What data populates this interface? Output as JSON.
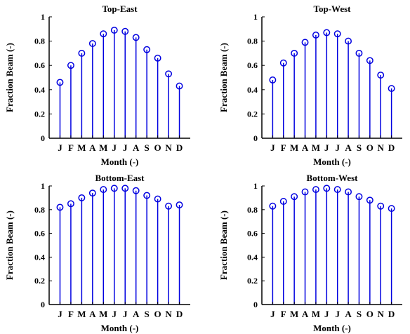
{
  "chart_data": [
    {
      "type": "stem",
      "title": "Top-East",
      "xlabel": "Month (-)",
      "ylabel": "Fraction Beam (-)",
      "categories": [
        "J",
        "F",
        "M",
        "A",
        "M",
        "J",
        "J",
        "A",
        "S",
        "O",
        "N",
        "D"
      ],
      "values": [
        0.46,
        0.6,
        0.7,
        0.78,
        0.86,
        0.89,
        0.88,
        0.83,
        0.73,
        0.66,
        0.53,
        0.43
      ],
      "ylim": [
        0,
        1
      ],
      "yticks": [
        "0",
        "0.2",
        "0.4",
        "0.6",
        "0.8",
        "1"
      ],
      "color": "#0000e0",
      "grid": false
    },
    {
      "type": "stem",
      "title": "Top-West",
      "xlabel": "Month (-)",
      "ylabel": "Fraction Beam (-)",
      "categories": [
        "J",
        "F",
        "M",
        "A",
        "M",
        "J",
        "J",
        "A",
        "S",
        "O",
        "N",
        "D"
      ],
      "values": [
        0.48,
        0.62,
        0.7,
        0.79,
        0.85,
        0.87,
        0.86,
        0.8,
        0.7,
        0.64,
        0.52,
        0.41
      ],
      "ylim": [
        0,
        1
      ],
      "yticks": [
        "0",
        "0.2",
        "0.4",
        "0.6",
        "0.8",
        "1"
      ],
      "color": "#0000e0",
      "grid": false
    },
    {
      "type": "stem",
      "title": "Bottom-East",
      "xlabel": "Month (-)",
      "ylabel": "Fraction Beam (-)",
      "categories": [
        "J",
        "F",
        "M",
        "A",
        "M",
        "J",
        "J",
        "A",
        "S",
        "O",
        "N",
        "D"
      ],
      "values": [
        0.82,
        0.85,
        0.9,
        0.94,
        0.97,
        0.98,
        0.98,
        0.96,
        0.92,
        0.89,
        0.83,
        0.84
      ],
      "ylim": [
        0,
        1
      ],
      "yticks": [
        "0",
        "0.2",
        "0.4",
        "0.6",
        "0.8",
        "1"
      ],
      "color": "#0000e0",
      "grid": false
    },
    {
      "type": "stem",
      "title": "Bottom-West",
      "xlabel": "Month (-)",
      "ylabel": "Fraction Beam (-)",
      "categories": [
        "J",
        "F",
        "M",
        "A",
        "M",
        "J",
        "J",
        "A",
        "S",
        "O",
        "N",
        "D"
      ],
      "values": [
        0.83,
        0.87,
        0.91,
        0.95,
        0.97,
        0.98,
        0.97,
        0.95,
        0.91,
        0.88,
        0.83,
        0.81
      ],
      "ylim": [
        0,
        1
      ],
      "yticks": [
        "0",
        "0.2",
        "0.4",
        "0.6",
        "0.8",
        "1"
      ],
      "color": "#0000e0",
      "grid": false
    }
  ]
}
